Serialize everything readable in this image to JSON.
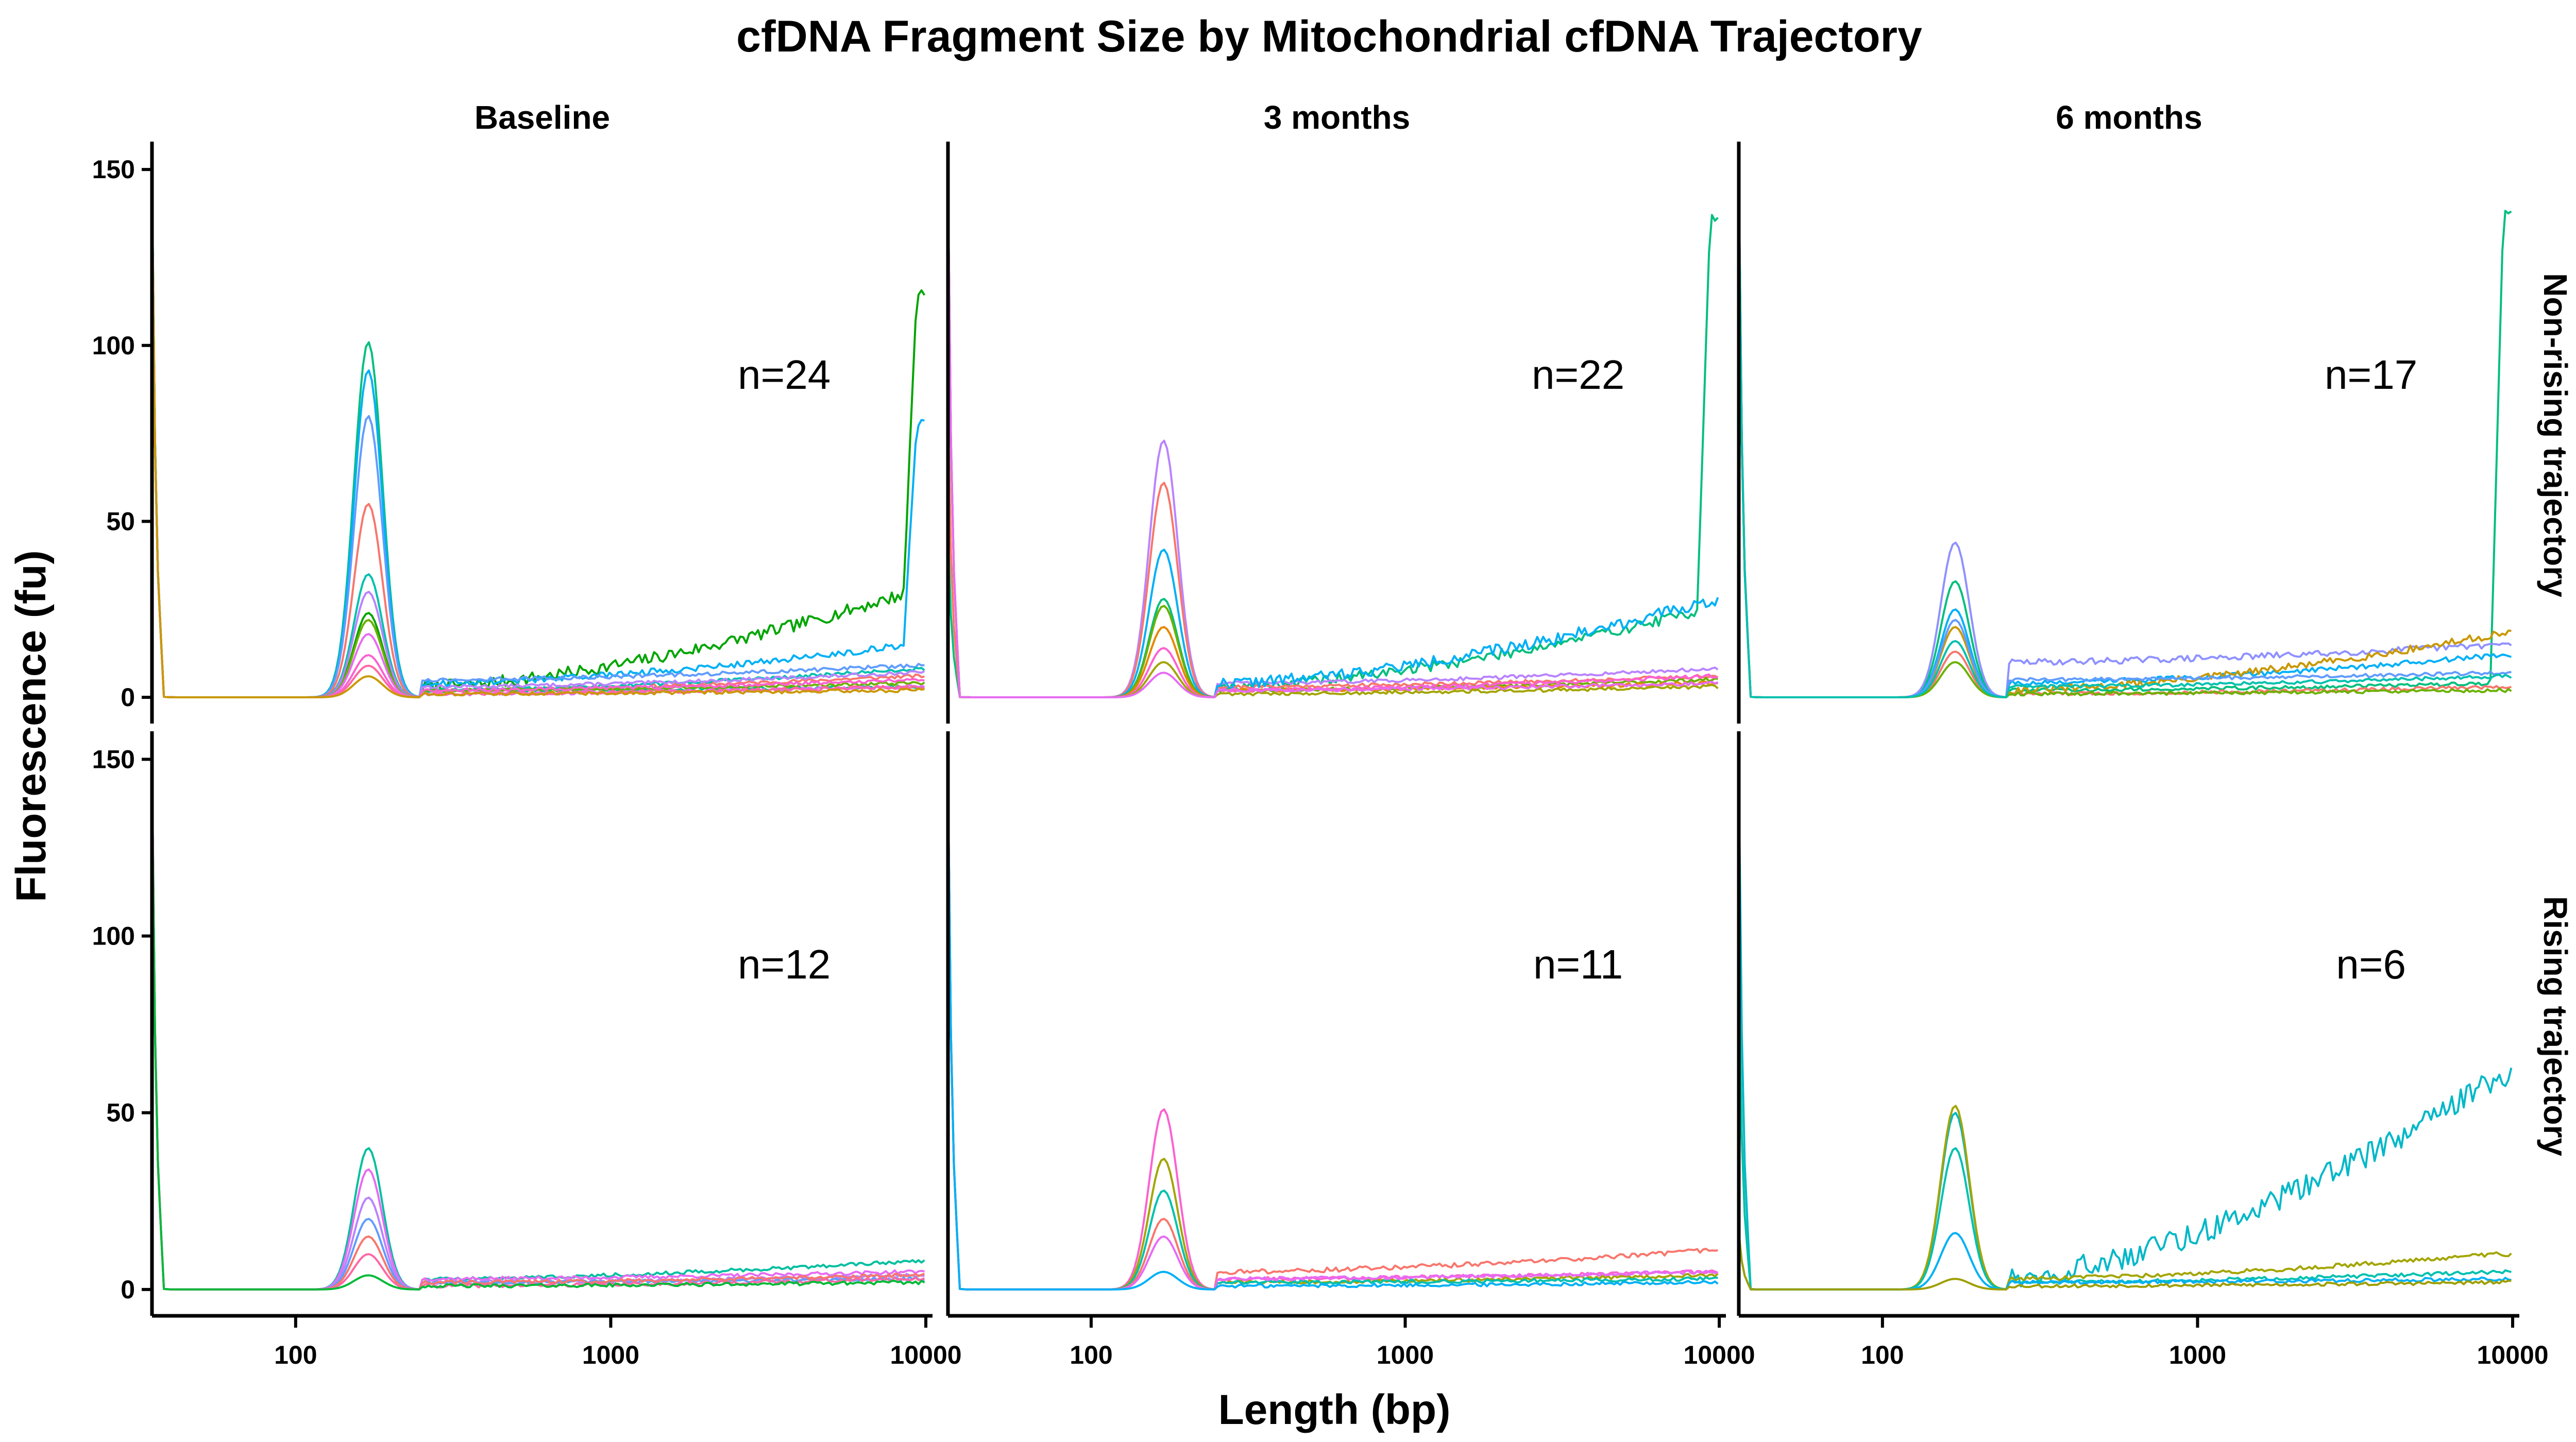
{
  "chart_data": {
    "type": "line",
    "title": "cfDNA Fragment Size by Mitochondrial cfDNA Trajectory",
    "xlabel": "Length (bp)",
    "ylabel": "Fluorescence (fu)",
    "x_scale": "log",
    "xlim": [
      35,
      10500
    ],
    "ylim": [
      -6,
      155
    ],
    "x_ticks": [
      100,
      1000,
      10000
    ],
    "x_tick_labels": [
      "100",
      "1000",
      "10000"
    ],
    "y_ticks": [
      0,
      50,
      100,
      150
    ],
    "y_tick_labels": [
      "0",
      "50",
      "100",
      "150"
    ],
    "columns": [
      "Baseline",
      "3 months",
      "6 months"
    ],
    "rows": [
      "Non-rising trajectory",
      "Rising trajectory"
    ],
    "legend": "none",
    "grid": false,
    "palette": [
      "#F8766D",
      "#E58700",
      "#C99800",
      "#A3A500",
      "#6BB100",
      "#00BA38",
      "#00BF7D",
      "#00C0AF",
      "#00BCD8",
      "#00B0F6",
      "#619CFF",
      "#B983FF",
      "#E76BF3",
      "#FD61D1",
      "#FF67A4"
    ],
    "panels": [
      {
        "row": "Non-rising trajectory",
        "column": "Baseline",
        "annotation": "n=24",
        "series": [
          {
            "color": "#00A500",
            "start": 148,
            "peak": 24,
            "plateau": [
              3,
              30
            ],
            "end": 115
          },
          {
            "color": "#00BF7D",
            "start": 145,
            "peak": 101,
            "plateau": [
              2,
              3
            ],
            "end": 3
          },
          {
            "color": "#00B0F6",
            "start": 148,
            "peak": 93,
            "plateau": [
              4,
              15
            ],
            "end": 78
          },
          {
            "color": "#619CFF",
            "start": 146,
            "peak": 80,
            "plateau": [
              5,
              9
            ],
            "end": 9
          },
          {
            "color": "#F8766D",
            "start": 145,
            "peak": 55,
            "plateau": [
              2,
              6
            ],
            "end": 6
          },
          {
            "color": "#00C0AF",
            "start": 147,
            "peak": 35,
            "plateau": [
              2,
              8
            ],
            "end": 8
          },
          {
            "color": "#B983FF",
            "start": 144,
            "peak": 30,
            "plateau": [
              3,
              7
            ],
            "end": 7
          },
          {
            "color": "#6BB100",
            "start": 146,
            "peak": 22,
            "plateau": [
              2,
              4
            ],
            "end": 4
          },
          {
            "color": "#E76BF3",
            "start": 145,
            "peak": 18,
            "plateau": [
              1,
              3
            ],
            "end": 3
          },
          {
            "color": "#FD61D1",
            "start": 145,
            "peak": 12,
            "plateau": [
              2,
              5
            ],
            "end": 5
          },
          {
            "color": "#FF67A4",
            "start": 144,
            "peak": 9,
            "plateau": [
              1,
              3
            ],
            "end": 3
          },
          {
            "color": "#C99800",
            "start": 144,
            "peak": 6,
            "plateau": [
              1,
              2
            ],
            "end": 2
          }
        ]
      },
      {
        "row": "Non-rising trajectory",
        "column": "3 months",
        "annotation": "n=22",
        "series": [
          {
            "color": "#00BF7D",
            "start": 47,
            "peak": 28,
            "plateau": [
              3,
              25
            ],
            "end": 136
          },
          {
            "color": "#B983FF",
            "start": 148,
            "peak": 73,
            "plateau": [
              4,
              8
            ],
            "end": 8
          },
          {
            "color": "#F8766D",
            "start": 82,
            "peak": 61,
            "plateau": [
              3,
              6
            ],
            "end": 6
          },
          {
            "color": "#00B0F6",
            "start": 147,
            "peak": 42,
            "plateau": [
              4,
              27
            ],
            "end": 26
          },
          {
            "color": "#6BB100",
            "start": 146,
            "peak": 26,
            "plateau": [
              2,
              5
            ],
            "end": 5
          },
          {
            "color": "#E58700",
            "start": 145,
            "peak": 20,
            "plateau": [
              2,
              4
            ],
            "end": 4
          },
          {
            "color": "#FD61D1",
            "start": 146,
            "peak": 14,
            "plateau": [
              2,
              6
            ],
            "end": 6
          },
          {
            "color": "#A3A500",
            "start": 144,
            "peak": 10,
            "plateau": [
              1,
              3
            ],
            "end": 3
          },
          {
            "color": "#E76BF3",
            "start": 148,
            "peak": 7,
            "plateau": [
              2,
              4
            ],
            "end": 4
          }
        ]
      },
      {
        "row": "Non-rising trajectory",
        "column": "6 months",
        "annotation": "n=17",
        "series": [
          {
            "color": "#00BF7D",
            "start": 148,
            "peak": 33,
            "plateau": [
              2,
              4
            ],
            "end": 138
          },
          {
            "color": "#8F91FF",
            "start": 150,
            "peak": 44,
            "plateau": [
              10,
              15
            ],
            "end": 13
          },
          {
            "color": "#00B0F6",
            "start": 149,
            "peak": 25,
            "plateau": [
              4,
              12
            ],
            "end": 12
          },
          {
            "color": "#C99800",
            "start": 146,
            "peak": 20,
            "plateau": [
              2,
              18
            ],
            "end": 17
          },
          {
            "color": "#619CFF",
            "start": 147,
            "peak": 22,
            "plateau": [
              5,
              7
            ],
            "end": 7
          },
          {
            "color": "#F8766D",
            "start": 145,
            "peak": 13,
            "plateau": [
              1,
              3
            ],
            "end": 3
          },
          {
            "color": "#6BB100",
            "start": 145,
            "peak": 10,
            "plateau": [
              1,
              2
            ],
            "end": 2
          },
          {
            "color": "#00C0AF",
            "start": 146,
            "peak": 16,
            "plateau": [
              3,
              6
            ],
            "end": 6
          }
        ]
      },
      {
        "row": "Rising trajectory",
        "column": "Baseline",
        "annotation": "n=12",
        "series": [
          {
            "color": "#00BFA0",
            "start": 149,
            "peak": 40,
            "plateau": [
              3,
              8
            ],
            "end": 8
          },
          {
            "color": "#E76BF3",
            "start": 150,
            "peak": 34,
            "plateau": [
              3,
              5
            ],
            "end": 5
          },
          {
            "color": "#B983FF",
            "start": 148,
            "peak": 26,
            "plateau": [
              2,
              4
            ],
            "end": 4
          },
          {
            "color": "#619CFF",
            "start": 147,
            "peak": 20,
            "plateau": [
              2,
              3
            ],
            "end": 3
          },
          {
            "color": "#F8766D",
            "start": 146,
            "peak": 15,
            "plateau": [
              2,
              4
            ],
            "end": 4
          },
          {
            "color": "#FF67A4",
            "start": 148,
            "peak": 10,
            "plateau": [
              1,
              3
            ],
            "end": 3
          },
          {
            "color": "#00BA38",
            "start": 145,
            "peak": 4,
            "plateau": [
              1,
              2
            ],
            "end": 2
          }
        ]
      },
      {
        "row": "Rising trajectory",
        "column": "3 months",
        "annotation": "n=11",
        "series": [
          {
            "color": "#FD61D1",
            "start": 146,
            "peak": 51,
            "plateau": [
              3,
              5
            ],
            "end": 5
          },
          {
            "color": "#A3A500",
            "start": 145,
            "peak": 37,
            "plateau": [
              2,
              4
            ],
            "end": 4
          },
          {
            "color": "#00C0AF",
            "start": 146,
            "peak": 28,
            "plateau": [
              2,
              3
            ],
            "end": 3
          },
          {
            "color": "#F8766D",
            "start": 144,
            "peak": 20,
            "plateau": [
              5,
              11
            ],
            "end": 10
          },
          {
            "color": "#E76BF3",
            "start": 145,
            "peak": 15,
            "plateau": [
              3,
              5
            ],
            "end": 5
          },
          {
            "color": "#00B0F6",
            "start": 145,
            "peak": 5,
            "plateau": [
              1,
              2
            ],
            "end": 2
          }
        ]
      },
      {
        "row": "Rising trajectory",
        "column": "6 months",
        "annotation": "n=6",
        "series": [
          {
            "color": "#00B8C8",
            "start": 146,
            "peak": 50,
            "plateau": [
              4,
              60
            ],
            "end": 70
          },
          {
            "color": "#A3A500",
            "start": 87,
            "peak": 52,
            "plateau": [
              3,
              10
            ],
            "end": 10
          },
          {
            "color": "#00C0AF",
            "start": 86,
            "peak": 40,
            "plateau": [
              2,
              5
            ],
            "end": 5
          },
          {
            "color": "#00B0F6",
            "start": 16,
            "peak": 16,
            "plateau": [
              2,
              3
            ],
            "end": 2
          },
          {
            "color": "#9E9E00",
            "start": 16,
            "peak": 3,
            "plateau": [
              1,
              2
            ],
            "end": 2
          }
        ]
      }
    ]
  }
}
